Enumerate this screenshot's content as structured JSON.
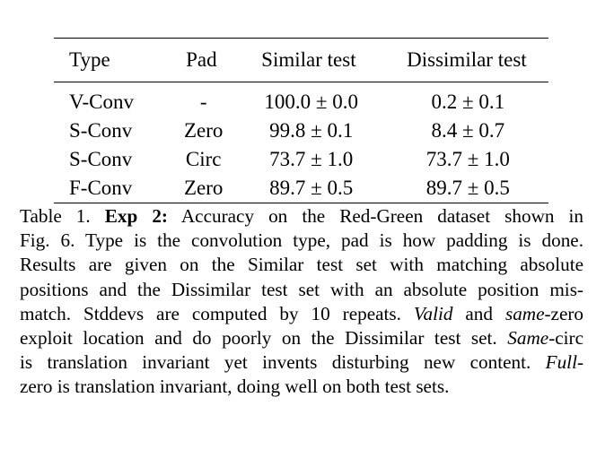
{
  "table": {
    "headers": [
      "Type",
      "Pad",
      "Similar test",
      "Dissimilar test"
    ],
    "rows": [
      {
        "type": "V-Conv",
        "pad": "-",
        "similar": "100.0 ± 0.0",
        "dissimilar": "0.2 ± 0.1",
        "bold_similar": true,
        "bold_dissimilar": false
      },
      {
        "type": "S-Conv",
        "pad": "Zero",
        "similar": "99.8 ± 0.1",
        "dissimilar": "8.4 ± 0.7",
        "bold_similar": false,
        "bold_dissimilar": false
      },
      {
        "type": "S-Conv",
        "pad": "Circ",
        "similar": "73.7 ± 1.0",
        "dissimilar": "73.7 ± 1.0",
        "bold_similar": false,
        "bold_dissimilar": false
      },
      {
        "type": "F-Conv",
        "pad": "Zero",
        "similar": "89.7 ± 0.5",
        "dissimilar": "89.7 ± 0.5",
        "bold_similar": false,
        "bold_dissimilar": true
      }
    ]
  },
  "caption": {
    "label": "Table 1.",
    "exp": "Exp 2:",
    "l1": "Accuracy on the Red-Green dataset shown in",
    "l2": "Fig. 6. Type is the convolution type, pad is how padding is done.",
    "l3": "Results are given on the Similar test set with matching absolute",
    "l4": "positions and the Dissimilar test set with an absolute position mis-",
    "l5a": "match. Stddevs are computed by 10 repeats.",
    "valid": "Valid",
    "l5b": "and",
    "same": "same",
    "l5c": "-zero",
    "l6": "exploit location and do poorly on the Dissimilar test set.",
    "same2": "Same",
    "l6b": "-circ",
    "l7a": "is translation invariant yet invents disturbing new content.",
    "full": "Full",
    "l7b": "-",
    "l8": "zero is translation invariant, doing well on both test sets."
  }
}
